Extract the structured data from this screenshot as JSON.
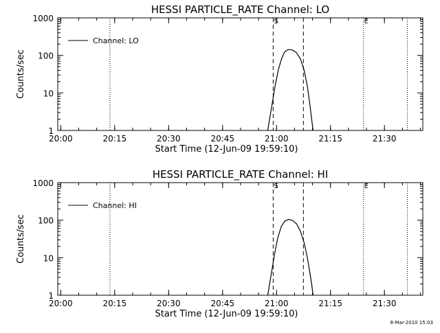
{
  "footer": {
    "timestamp": "8-Mar-2010 15:03"
  },
  "chart_data": [
    {
      "type": "line",
      "title": "HESSI PARTICLE_RATE Channel: LO",
      "xlabel": "Start Time (12-Jun-09 19:59:10)",
      "ylabel": "Counts/sec",
      "x_ticks": [
        "20:00",
        "20:15",
        "20:30",
        "20:45",
        "21:00",
        "21:15",
        "21:30"
      ],
      "y_ticks": [
        "1",
        "10",
        "100",
        "1000"
      ],
      "y_scale": "log",
      "ylim": [
        1,
        1000
      ],
      "xlim_minutes": [
        0,
        101.5
      ],
      "legend": {
        "position": "top-left"
      },
      "series": [
        {
          "name": "Channel: LO",
          "points": [
            [
              58.4,
              1
            ],
            [
              58.9,
              2
            ],
            [
              59.6,
              5
            ],
            [
              60.4,
              15
            ],
            [
              61.3,
              40
            ],
            [
              62.3,
              85
            ],
            [
              63.1,
              125
            ],
            [
              64.1,
              143
            ],
            [
              65.2,
              140
            ],
            [
              66.3,
              120
            ],
            [
              67.5,
              80
            ],
            [
              68.5,
              40
            ],
            [
              69.4,
              15
            ],
            [
              70.1,
              5
            ],
            [
              70.6,
              2
            ],
            [
              71.0,
              1
            ]
          ]
        }
      ],
      "markers": {
        "dotted_x_minutes": [
          14.5,
          85.0,
          97.2
        ],
        "dashed_x_minutes": [
          59.9,
          68.3
        ],
        "labels": [
          {
            "text": "S",
            "x_minutes": 59.9
          },
          {
            "text": "E",
            "x_minutes": 85.0
          }
        ]
      }
    },
    {
      "type": "line",
      "title": "HESSI PARTICLE_RATE Channel: HI",
      "xlabel": "Start Time (12-Jun-09 19:59:10)",
      "ylabel": "Counts/sec",
      "x_ticks": [
        "20:00",
        "20:15",
        "20:30",
        "20:45",
        "21:00",
        "21:15",
        "21:30"
      ],
      "y_ticks": [
        "1",
        "10",
        "100",
        "1000"
      ],
      "y_scale": "log",
      "ylim": [
        1,
        1000
      ],
      "xlim_minutes": [
        0,
        101.5
      ],
      "legend": {
        "position": "top-left"
      },
      "series": [
        {
          "name": "Channel: HI",
          "points": [
            [
              58.4,
              1
            ],
            [
              58.9,
              2
            ],
            [
              59.6,
              5
            ],
            [
              60.3,
              13
            ],
            [
              61.2,
              35
            ],
            [
              62.2,
              70
            ],
            [
              63.2,
              95
            ],
            [
              64.2,
              105
            ],
            [
              65.3,
              98
            ],
            [
              66.4,
              80
            ],
            [
              67.5,
              50
            ],
            [
              68.5,
              25
            ],
            [
              69.4,
              10
            ],
            [
              70.1,
              4
            ],
            [
              70.6,
              2
            ],
            [
              71.0,
              1
            ]
          ]
        }
      ],
      "markers": {
        "dotted_x_minutes": [
          14.5,
          85.0,
          97.2
        ],
        "dashed_x_minutes": [
          59.9,
          68.3
        ],
        "labels": [
          {
            "text": "S",
            "x_minutes": 59.9
          },
          {
            "text": "E",
            "x_minutes": 85.0
          }
        ]
      }
    }
  ]
}
